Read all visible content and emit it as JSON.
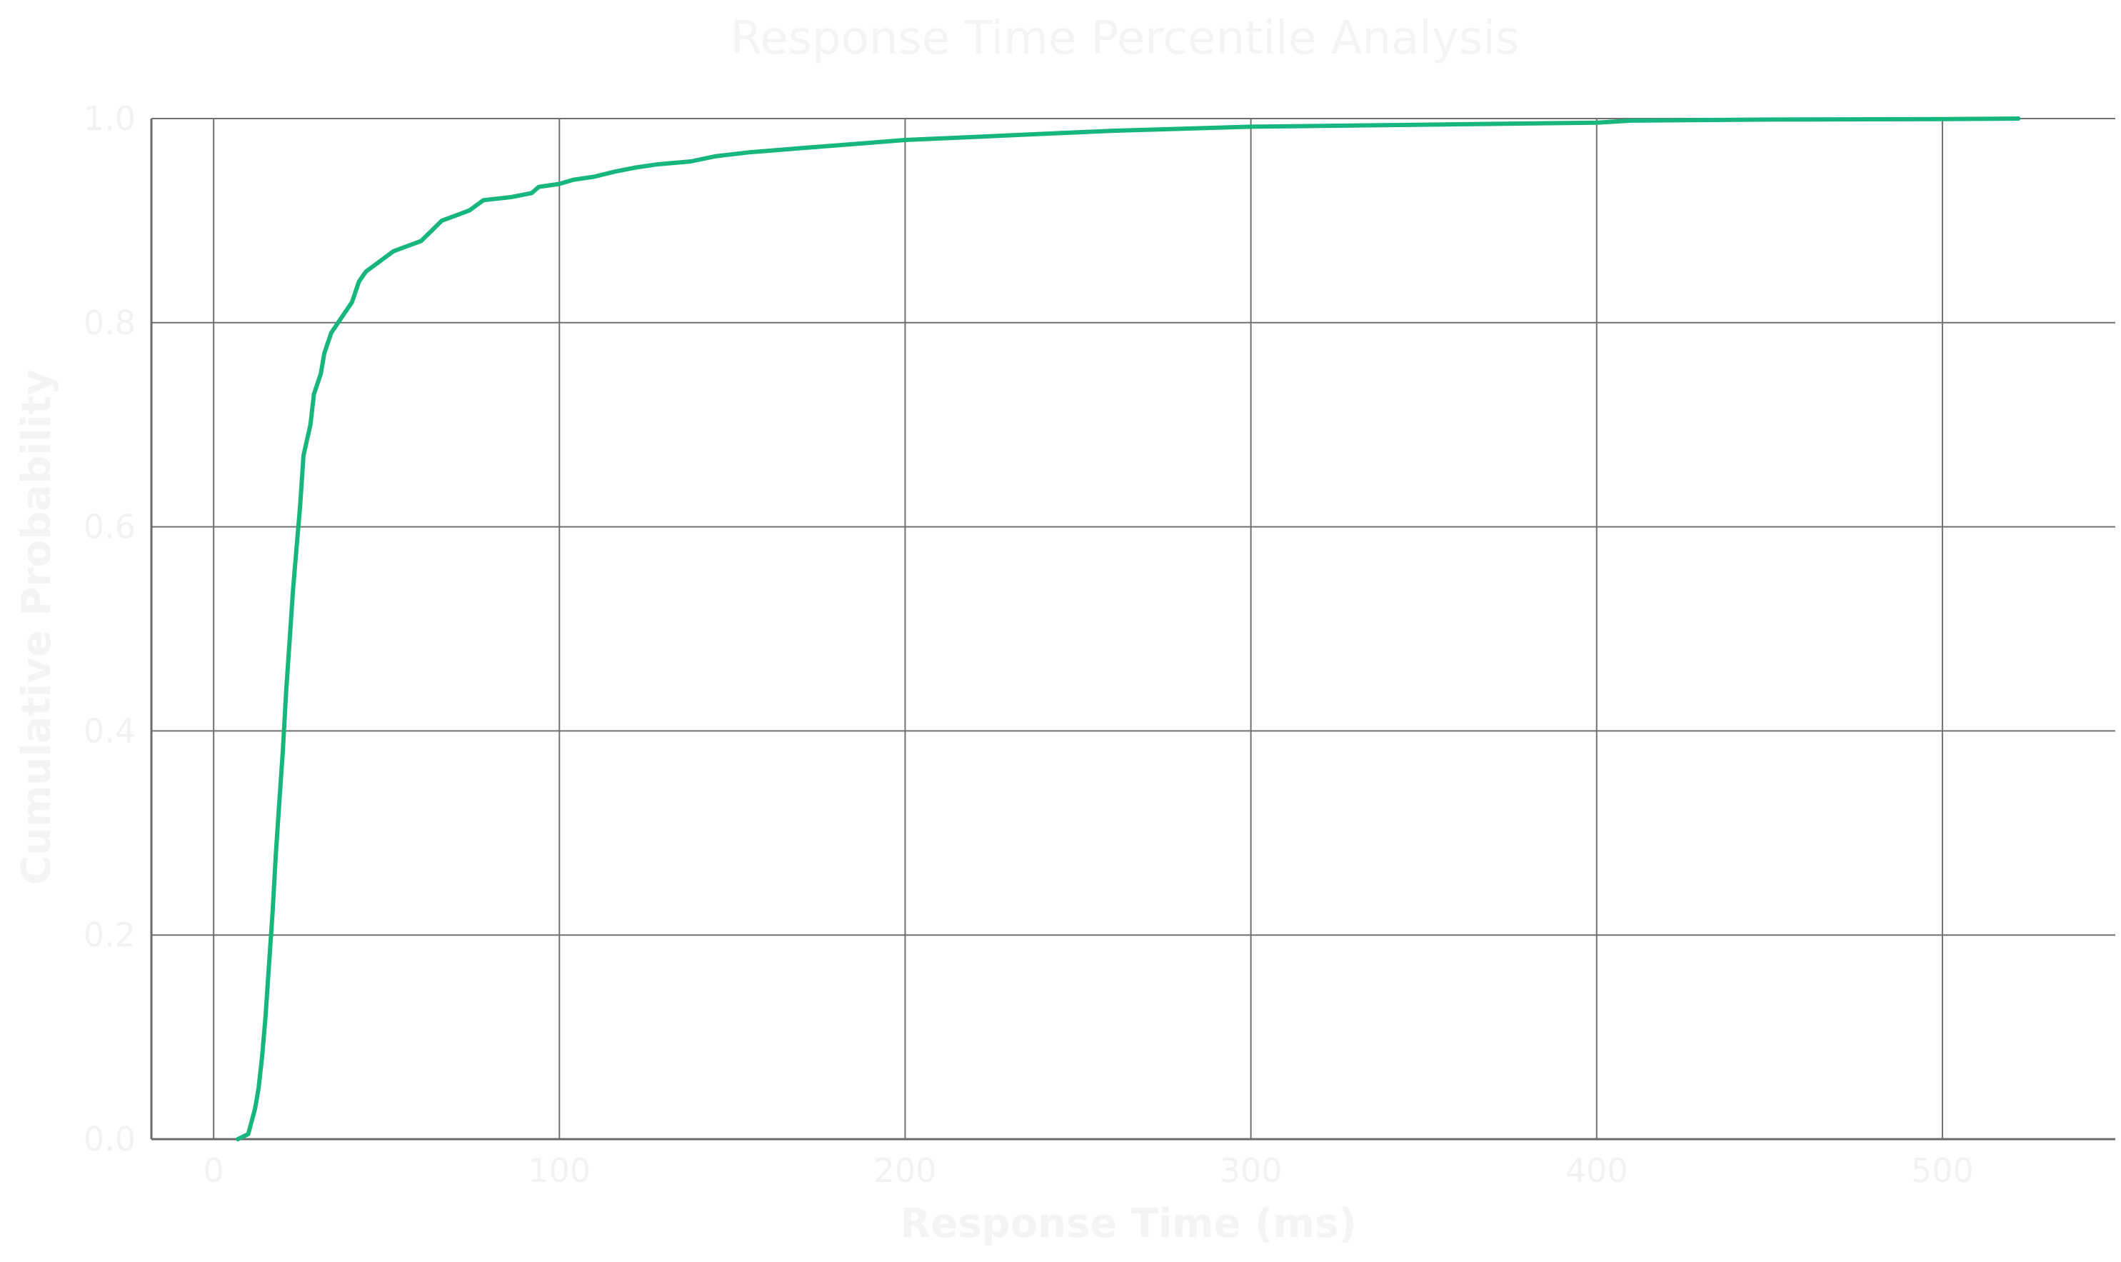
{
  "chart_data": {
    "type": "line",
    "title": "Response Time Percentile Analysis",
    "xlabel": "Response Time (ms)",
    "ylabel": "Cumulative Probability",
    "xlim": [
      -18,
      550
    ],
    "ylim": [
      0,
      1
    ],
    "xticks": [
      0,
      100,
      200,
      300,
      400,
      500
    ],
    "yticks": [
      0.0,
      0.2,
      0.4,
      0.6,
      0.8,
      1.0
    ],
    "xtick_labels": [
      "0",
      "100",
      "200",
      "300",
      "400",
      "500"
    ],
    "ytick_labels": [
      "0.0",
      "0.2",
      "0.4",
      "0.6",
      "0.8",
      "1.0"
    ],
    "grid": true,
    "series": [
      {
        "color": "#17b67d",
        "points": [
          [
            7,
            0.0
          ],
          [
            10,
            0.005
          ],
          [
            12,
            0.03
          ],
          [
            13,
            0.05
          ],
          [
            14,
            0.08
          ],
          [
            15,
            0.12
          ],
          [
            16,
            0.17
          ],
          [
            17,
            0.22
          ],
          [
            18,
            0.28
          ],
          [
            19,
            0.33
          ],
          [
            20,
            0.38
          ],
          [
            21,
            0.44
          ],
          [
            22,
            0.49
          ],
          [
            23,
            0.54
          ],
          [
            24,
            0.58
          ],
          [
            25,
            0.62
          ],
          [
            26,
            0.67
          ],
          [
            28,
            0.7
          ],
          [
            29,
            0.73
          ],
          [
            31,
            0.75
          ],
          [
            32,
            0.77
          ],
          [
            34,
            0.79
          ],
          [
            36,
            0.8
          ],
          [
            40,
            0.82
          ],
          [
            42,
            0.84
          ],
          [
            44,
            0.85
          ],
          [
            48,
            0.86
          ],
          [
            52,
            0.87
          ],
          [
            56,
            0.875
          ],
          [
            60,
            0.88
          ],
          [
            63,
            0.89
          ],
          [
            66,
            0.9
          ],
          [
            70,
            0.905
          ],
          [
            74,
            0.91
          ],
          [
            76,
            0.915
          ],
          [
            78,
            0.92
          ],
          [
            86,
            0.923
          ],
          [
            92,
            0.927
          ],
          [
            94,
            0.933
          ],
          [
            100,
            0.936
          ],
          [
            104,
            0.94
          ],
          [
            110,
            0.943
          ],
          [
            116,
            0.948
          ],
          [
            122,
            0.952
          ],
          [
            128,
            0.955
          ],
          [
            138,
            0.958
          ],
          [
            145,
            0.963
          ],
          [
            155,
            0.967
          ],
          [
            170,
            0.971
          ],
          [
            185,
            0.975
          ],
          [
            200,
            0.979
          ],
          [
            220,
            0.982
          ],
          [
            240,
            0.985
          ],
          [
            260,
            0.988
          ],
          [
            280,
            0.99
          ],
          [
            300,
            0.992
          ],
          [
            350,
            0.994
          ],
          [
            400,
            0.996
          ],
          [
            410,
            0.998
          ],
          [
            450,
            0.999
          ],
          [
            500,
            0.9995
          ],
          [
            522,
            1.0
          ]
        ]
      }
    ]
  }
}
